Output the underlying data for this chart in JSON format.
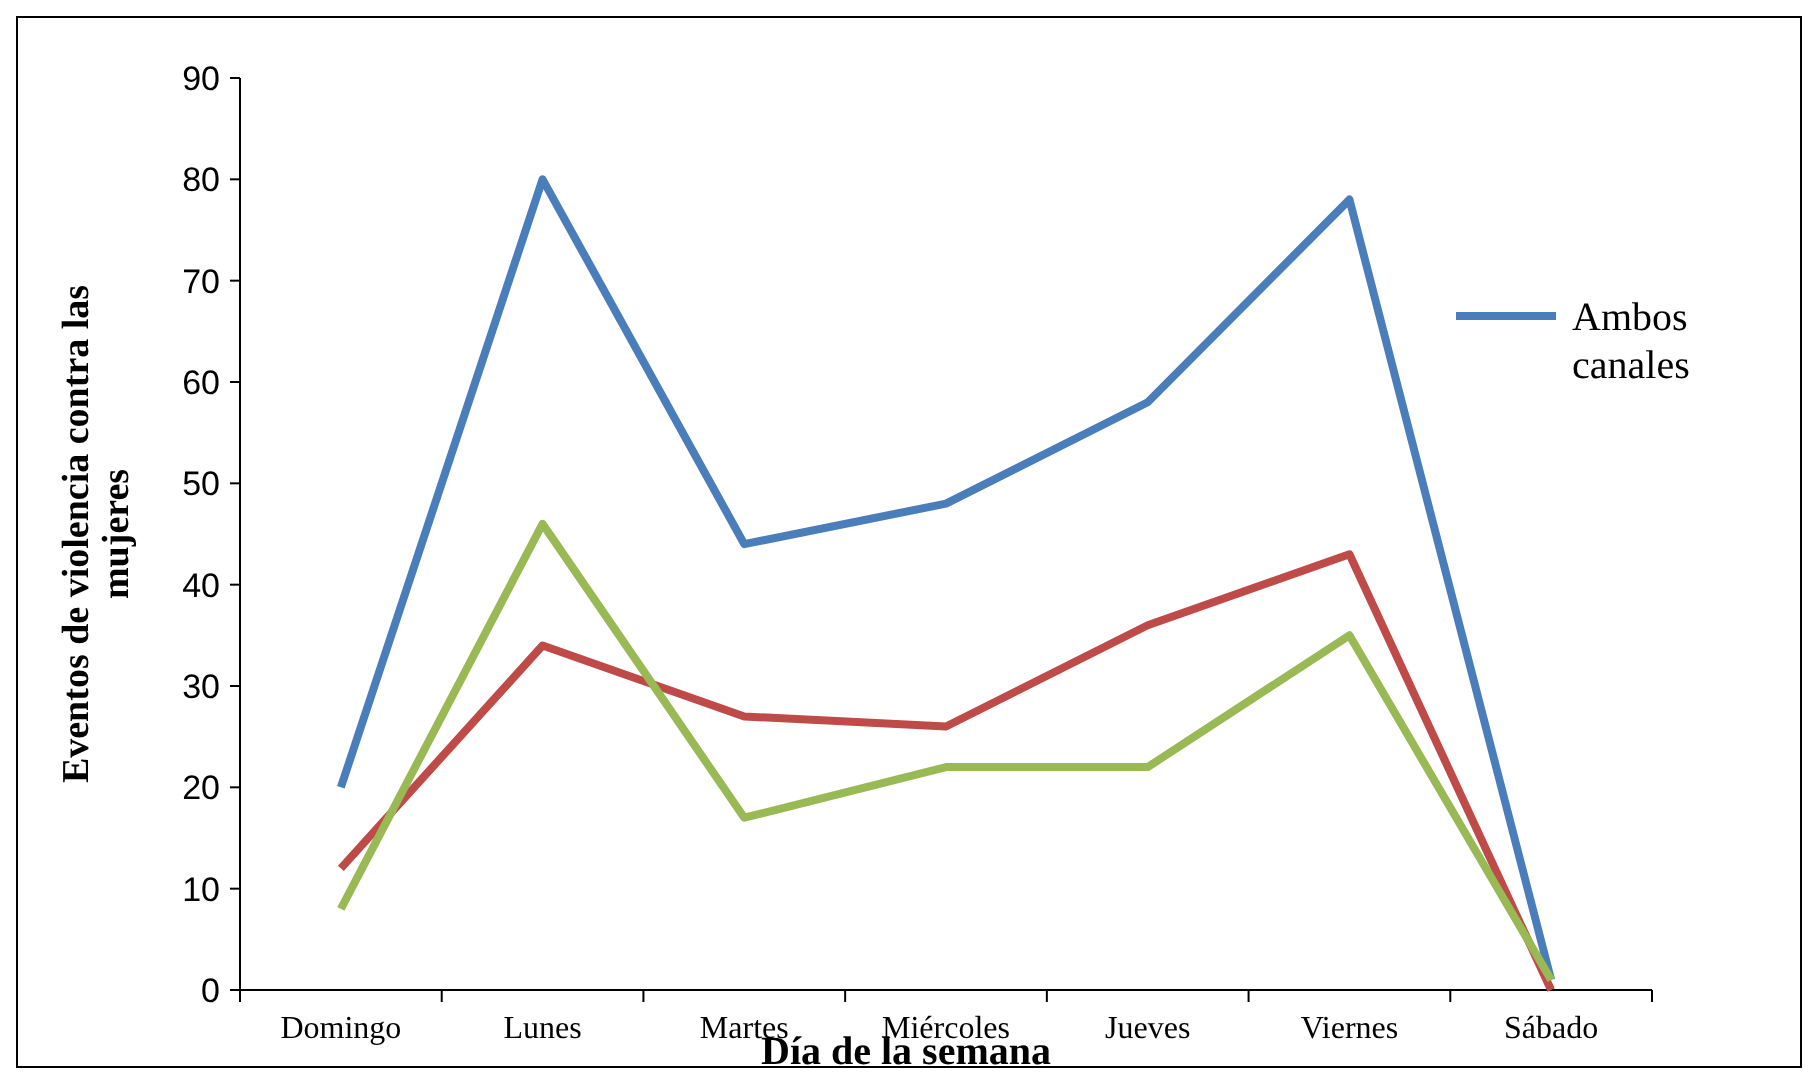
{
  "chart_data": {
    "type": "line",
    "xlabel": "Día de la semana",
    "ylabel": "Eventos de violencia contra las mujeres",
    "categories": [
      "Domingo",
      "Lunes",
      "Martes",
      "Miércoles",
      "Jueves",
      "Viernes",
      "Sábado"
    ],
    "series": [
      {
        "name": "Ambos canales",
        "color": "#4a7ebb",
        "values": [
          20,
          80,
          44,
          48,
          58,
          78,
          1
        ]
      },
      {
        "color": "#be4b48",
        "values": [
          12,
          34,
          27,
          26,
          36,
          43,
          0
        ]
      },
      {
        "color": "#98b954",
        "values": [
          8,
          46,
          17,
          22,
          22,
          35,
          1
        ]
      }
    ],
    "ylim": [
      0,
      90
    ],
    "yticks": [
      0,
      10,
      20,
      30,
      40,
      50,
      60,
      70,
      80,
      90
    ],
    "grid": false,
    "legend": "right",
    "marker": "none",
    "line_style": "solid"
  }
}
